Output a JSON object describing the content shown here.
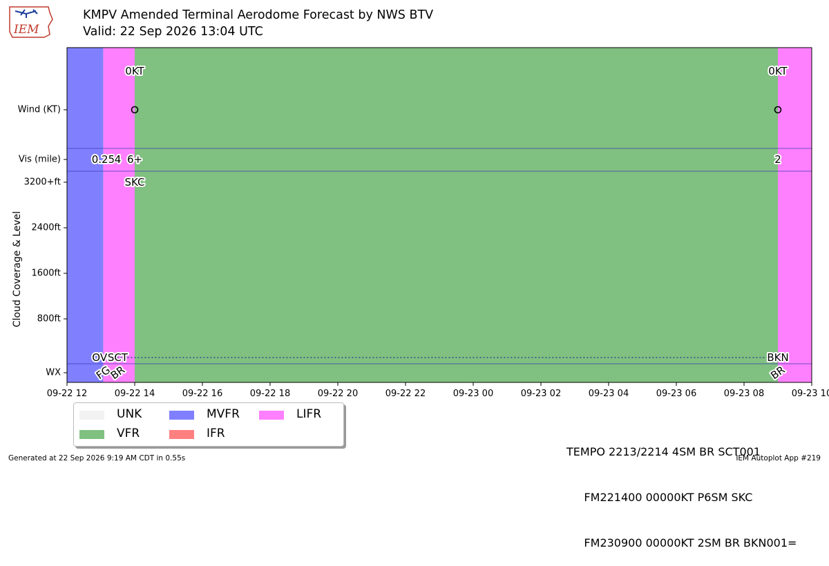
{
  "logo": {
    "text": "IEM"
  },
  "title": {
    "line1": "KMPV Amended Terminal Aerodome Forecast by NWS BTV",
    "line2": "Valid: 22 Sep 2026 13:04 UTC"
  },
  "colors": {
    "UNK": "#f2f2f2",
    "VFR": "#80c080",
    "MVFR": "#8080ff",
    "IFR": "#ff8080",
    "LIFR": "#ff80ff"
  },
  "chart_data": {
    "type": "timeline",
    "ylabel": "Cloud Coverage & Level",
    "x_ticks": [
      "09-22 12",
      "09-22 14",
      "09-22 16",
      "09-22 18",
      "09-22 20",
      "09-22 22",
      "09-23 00",
      "09-23 02",
      "09-23 04",
      "09-23 06",
      "09-23 08",
      "09-23 10"
    ],
    "x_range_hours": [
      0,
      22
    ],
    "row_labels": [
      "Wind (KT)",
      "Vis (mile)",
      "3200+ft",
      "2400ft",
      "1600ft",
      "800ft",
      "WX"
    ],
    "category_bands": [
      {
        "start_hour": 0,
        "end_hour": 1.07,
        "category": "MVFR"
      },
      {
        "start_hour": 1.07,
        "end_hour": 2.0,
        "category": "LIFR"
      },
      {
        "start_hour": 2.0,
        "end_hour": 21.0,
        "category": "VFR"
      },
      {
        "start_hour": 21.0,
        "end_hour": 22.0,
        "category": "LIFR"
      }
    ],
    "wind": [
      {
        "hour": 2.0,
        "label": "0KT"
      },
      {
        "hour": 21.0,
        "label": "0KT"
      }
    ],
    "visibility": [
      {
        "hour": 1.07,
        "label": "0.25"
      },
      {
        "hour": 1.5,
        "label": "4"
      },
      {
        "hour": 2.0,
        "label": "6+"
      },
      {
        "hour": 21.0,
        "label": "2"
      }
    ],
    "clouds": [
      {
        "hour": 1.07,
        "coverage": "OVC",
        "level_ft": 100
      },
      {
        "hour": 1.5,
        "coverage": "SCT",
        "level_ft": 100
      },
      {
        "hour": 2.0,
        "coverage": "SKC",
        "level_ft": null
      },
      {
        "hour": 21.0,
        "coverage": "BKN",
        "level_ft": 100
      }
    ],
    "weather": [
      {
        "hour": 1.07,
        "label": "FG"
      },
      {
        "hour": 1.5,
        "label": "BR"
      },
      {
        "hour": 21.0,
        "label": "BR"
      }
    ],
    "legend": [
      "UNK",
      "VFR",
      "MVFR",
      "IFR",
      "LIFR"
    ]
  },
  "taf_lines": [
    "TEMPO 2213/2214 4SM BR SCT001",
    "     FM221400 00000KT P6SM SKC",
    "     FM230900 00000KT 2SM BR BKN001="
  ],
  "footer": {
    "generated": "Generated at 22 Sep 2026 9:19 AM CDT in 0.55s",
    "app": "IEM Autoplot App #219"
  }
}
